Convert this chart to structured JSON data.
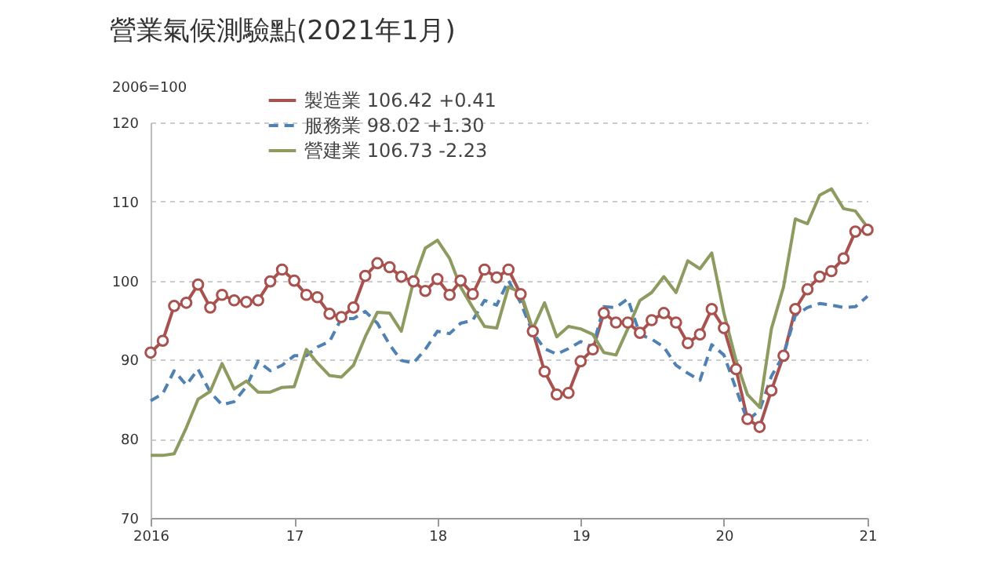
{
  "chart_data": {
    "type": "line",
    "title": "營業氣候測驗點(2021年1月)",
    "ylabel": "2006=100",
    "x": [
      "2016-01",
      "2016-02",
      "2016-03",
      "2016-04",
      "2016-05",
      "2016-06",
      "2016-07",
      "2016-08",
      "2016-09",
      "2016-10",
      "2016-11",
      "2016-12",
      "2017-01",
      "2017-02",
      "2017-03",
      "2017-04",
      "2017-05",
      "2017-06",
      "2017-07",
      "2017-08",
      "2017-09",
      "2017-10",
      "2017-11",
      "2017-12",
      "2018-01",
      "2018-02",
      "2018-03",
      "2018-04",
      "2018-05",
      "2018-06",
      "2018-07",
      "2018-08",
      "2018-09",
      "2018-10",
      "2018-11",
      "2018-12",
      "2019-01",
      "2019-02",
      "2019-03",
      "2019-04",
      "2019-05",
      "2019-06",
      "2019-07",
      "2019-08",
      "2019-09",
      "2019-10",
      "2019-11",
      "2019-12",
      "2020-01",
      "2020-02",
      "2020-03",
      "2020-04",
      "2020-05",
      "2020-06",
      "2020-07",
      "2020-08",
      "2020-09",
      "2020-10",
      "2020-11",
      "2020-12",
      "2021-01"
    ],
    "series": [
      {
        "name": "製造業   106.42   +0.41",
        "color": "#a8524f",
        "marker": "circle",
        "line_style": "solid",
        "values": [
          90.9,
          92.4,
          96.8,
          97.2,
          99.5,
          96.6,
          98.2,
          97.5,
          97.3,
          97.5,
          99.9,
          101.4,
          100.0,
          98.2,
          97.9,
          95.8,
          95.4,
          96.6,
          100.6,
          102.2,
          101.7,
          100.5,
          99.9,
          98.7,
          100.2,
          98.2,
          100.0,
          98.3,
          101.4,
          100.4,
          101.4,
          98.3,
          93.6,
          88.5,
          85.6,
          85.8,
          89.8,
          91.3,
          95.9,
          94.7,
          94.7,
          93.4,
          95.0,
          95.9,
          94.7,
          92.1,
          93.2,
          96.4,
          94.0,
          88.8,
          82.5,
          81.5,
          86.1,
          90.5,
          96.4,
          98.9,
          100.5,
          101.2,
          102.8,
          106.2,
          106.42
        ]
      },
      {
        "name": "服務業     98.02   +1.30",
        "color": "#4f81b3",
        "marker": "none",
        "line_style": "dashed",
        "values": [
          84.8,
          85.7,
          88.6,
          86.8,
          88.8,
          85.9,
          84.3,
          84.7,
          86.6,
          89.8,
          88.6,
          89.3,
          90.5,
          90.5,
          91.6,
          92.3,
          95.2,
          95.2,
          96.1,
          94.6,
          91.9,
          89.9,
          89.6,
          91.3,
          93.6,
          93.3,
          94.6,
          95.0,
          97.5,
          96.9,
          100.0,
          97.2,
          93.4,
          91.4,
          90.7,
          91.4,
          92.3,
          91.6,
          96.7,
          96.6,
          97.7,
          93.2,
          92.6,
          91.6,
          89.3,
          88.3,
          87.4,
          91.9,
          90.6,
          86.3,
          82.3,
          83.6,
          87.9,
          90.6,
          95.6,
          96.6,
          97.1,
          96.9,
          96.6,
          96.7,
          98.02
        ]
      },
      {
        "name": "營建業   106.73   -2.23",
        "color": "#8d9a60",
        "marker": "none",
        "line_style": "solid",
        "values": [
          77.9,
          77.9,
          78.1,
          81.4,
          85.0,
          86.0,
          89.5,
          86.3,
          87.3,
          85.9,
          85.9,
          86.5,
          86.6,
          91.3,
          89.6,
          88.0,
          87.8,
          89.3,
          92.9,
          96.0,
          95.9,
          93.6,
          99.9,
          104.1,
          105.1,
          102.8,
          99.2,
          96.6,
          94.2,
          94.0,
          99.2,
          98.5,
          93.9,
          97.2,
          92.9,
          94.2,
          93.9,
          93.2,
          90.9,
          90.6,
          93.9,
          97.5,
          98.5,
          100.5,
          98.5,
          102.5,
          101.5,
          103.5,
          95.9,
          89.9,
          85.6,
          84.0,
          93.9,
          99.2,
          107.8,
          107.2,
          110.8,
          111.6,
          109.1,
          108.8,
          106.73
        ]
      }
    ],
    "xlim": [
      "2016-01",
      "2021-01"
    ],
    "xticks": [
      {
        "value": "2016-01",
        "label": "2016"
      },
      {
        "value": "2017-01",
        "label": "17"
      },
      {
        "value": "2018-01",
        "label": "18"
      },
      {
        "value": "2019-01",
        "label": "19"
      },
      {
        "value": "2020-01",
        "label": "20"
      },
      {
        "value": "2021-01",
        "label": "21"
      }
    ],
    "ylim": [
      70,
      120
    ],
    "yticks": [
      70,
      80,
      90,
      100,
      110,
      120
    ],
    "grid": "y",
    "legend": "top left"
  }
}
